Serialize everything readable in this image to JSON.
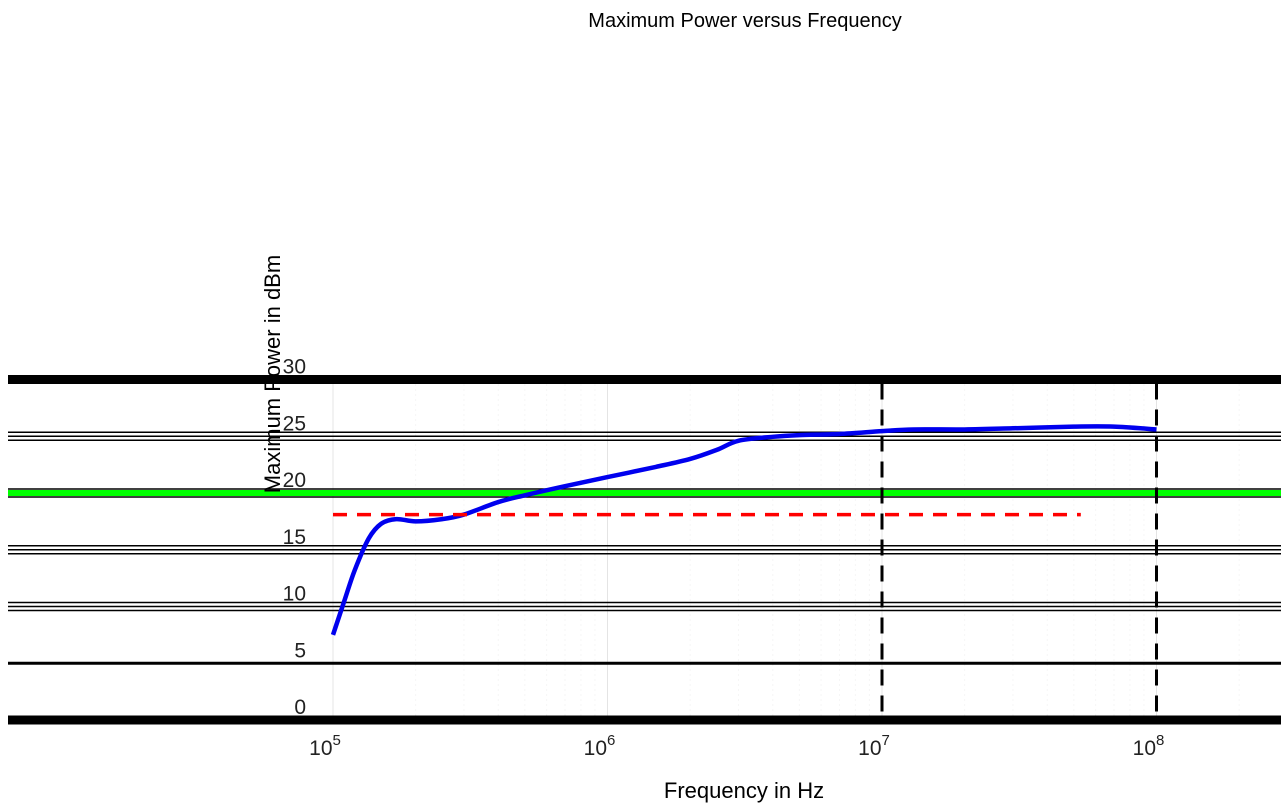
{
  "chart_data": {
    "type": "line",
    "title": "Maximum Power versus Frequency",
    "xlabel": "Frequency in Hz",
    "ylabel": "Maximum Power in dBm",
    "xscale": "log",
    "xlim": [
      100000,
      250000000
    ],
    "ylim": [
      0,
      30
    ],
    "x_ticks": [
      {
        "value": 100000,
        "base": "10",
        "exp": "5"
      },
      {
        "value": 1000000,
        "base": "10",
        "exp": "6"
      },
      {
        "value": 10000000,
        "base": "10",
        "exp": "7"
      },
      {
        "value": 100000000,
        "base": "10",
        "exp": "8"
      }
    ],
    "y_ticks": [
      {
        "value": 0,
        "label": "0"
      },
      {
        "value": 5,
        "label": "5"
      },
      {
        "value": 10,
        "label": "10"
      },
      {
        "value": 15,
        "label": "15"
      },
      {
        "value": 20,
        "label": "20"
      },
      {
        "value": 25,
        "label": "25"
      },
      {
        "value": 30,
        "label": "30"
      }
    ],
    "grid": true,
    "series": [
      {
        "color": "#0000ee",
        "style": "solid",
        "x": [
          100000,
          110000,
          120000,
          135000,
          150000,
          170000,
          200000,
          250000,
          300000,
          400000,
          500000,
          700000,
          1000000,
          1500000,
          2000000,
          2500000,
          3000000,
          4000000,
          5000000,
          7000000,
          10000000,
          13000000,
          20000000,
          30000000,
          50000000,
          70000000,
          100000000
        ],
        "y": [
          7.5,
          10.5,
          13.2,
          16.0,
          17.3,
          17.7,
          17.5,
          17.7,
          18.1,
          19.2,
          19.8,
          20.6,
          21.4,
          22.3,
          23.0,
          23.8,
          24.6,
          24.95,
          25.1,
          25.2,
          25.45,
          25.6,
          25.6,
          25.7,
          25.85,
          25.85,
          25.6
        ]
      },
      {
        "color": "#ff0000",
        "style": "dashed",
        "x": [
          100000,
          53000000
        ],
        "y": [
          18.1,
          18.1
        ]
      }
    ],
    "reference_lines": [
      {
        "orientation": "horizontal",
        "value": 20,
        "color": "#00ff00",
        "style": "solid"
      },
      {
        "orientation": "vertical",
        "value": 10000000,
        "color": "#000000",
        "style": "dashed"
      },
      {
        "orientation": "vertical",
        "value": 100000000,
        "color": "#000000",
        "style": "dashed"
      }
    ]
  }
}
